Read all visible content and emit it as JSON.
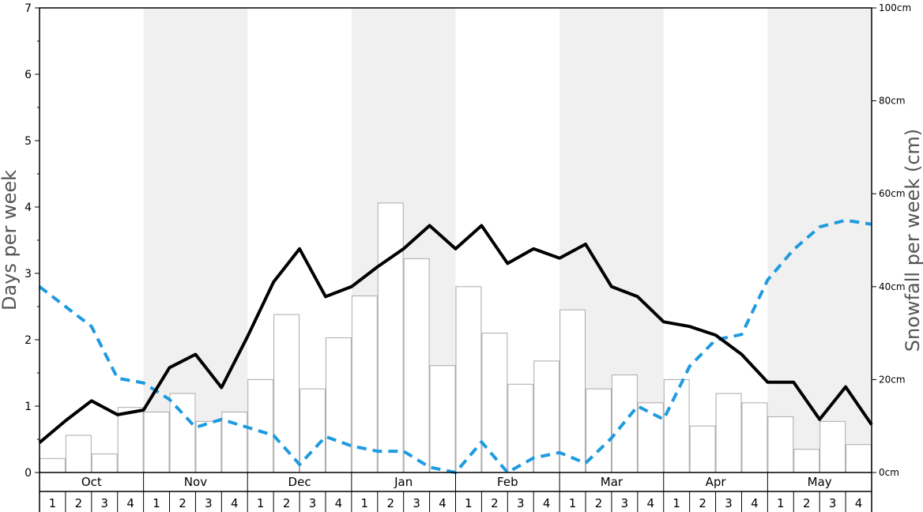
{
  "chart_data": {
    "type": "bar",
    "title": "",
    "ylabel_left": "Days per week",
    "ylabel_right": "Snowfall per week (cm)",
    "ylim_left": [
      0,
      7
    ],
    "ylim_right": [
      0,
      100
    ],
    "left_ticks": [
      "0",
      "1",
      "2",
      "3",
      "4",
      "5",
      "6",
      "7"
    ],
    "right_ticks": [
      "0cm",
      "20cm",
      "40cm",
      "60cm",
      "80cm",
      "100cm"
    ],
    "months": [
      "Oct",
      "Nov",
      "Dec",
      "Jan",
      "Feb",
      "Mar",
      "Apr",
      "May"
    ],
    "weeks": [
      "1",
      "2",
      "3",
      "4"
    ],
    "shaded_months": [
      "Nov",
      "Jan",
      "Mar",
      "May"
    ],
    "colors": {
      "snowfall_bar": "#ffffff",
      "bar_edge": "#aaaaaa",
      "solid_line": "#000000",
      "dashed_line": "#1e9be0",
      "shade": "#f0f0f0"
    },
    "series": [
      {
        "type": "bar",
        "axis": "right",
        "values": [
          3,
          8,
          4,
          14,
          13,
          17,
          11,
          13,
          20,
          34,
          18,
          29,
          38,
          58,
          46,
          23,
          40,
          30,
          19,
          24,
          35,
          18,
          21,
          15,
          20,
          10,
          17,
          15,
          12,
          5,
          11,
          6
        ]
      },
      {
        "type": "line",
        "axis": "left",
        "style": "solid",
        "values": [
          0.45,
          0.78,
          1.08,
          0.87,
          0.94,
          1.58,
          1.78,
          1.28,
          2.05,
          2.87,
          3.37,
          2.65,
          2.8,
          3.1,
          3.37,
          3.72,
          3.37,
          3.72,
          3.15,
          3.37,
          3.23,
          3.44,
          2.8,
          2.65,
          2.27,
          2.2,
          2.07,
          1.78,
          1.36,
          1.36,
          0.8,
          1.29,
          0.72
        ]
      },
      {
        "type": "line",
        "axis": "left",
        "style": "dashed",
        "values": [
          2.8,
          2.5,
          2.2,
          1.42,
          1.35,
          1.1,
          0.68,
          0.8,
          0.68,
          0.56,
          0.12,
          0.54,
          0.4,
          0.32,
          0.32,
          0.08,
          0.0,
          0.46,
          0.0,
          0.22,
          0.3,
          0.14,
          0.52,
          1.0,
          0.8,
          1.6,
          2.0,
          2.08,
          2.9,
          3.36,
          3.7,
          3.8,
          3.74
        ]
      }
    ]
  }
}
